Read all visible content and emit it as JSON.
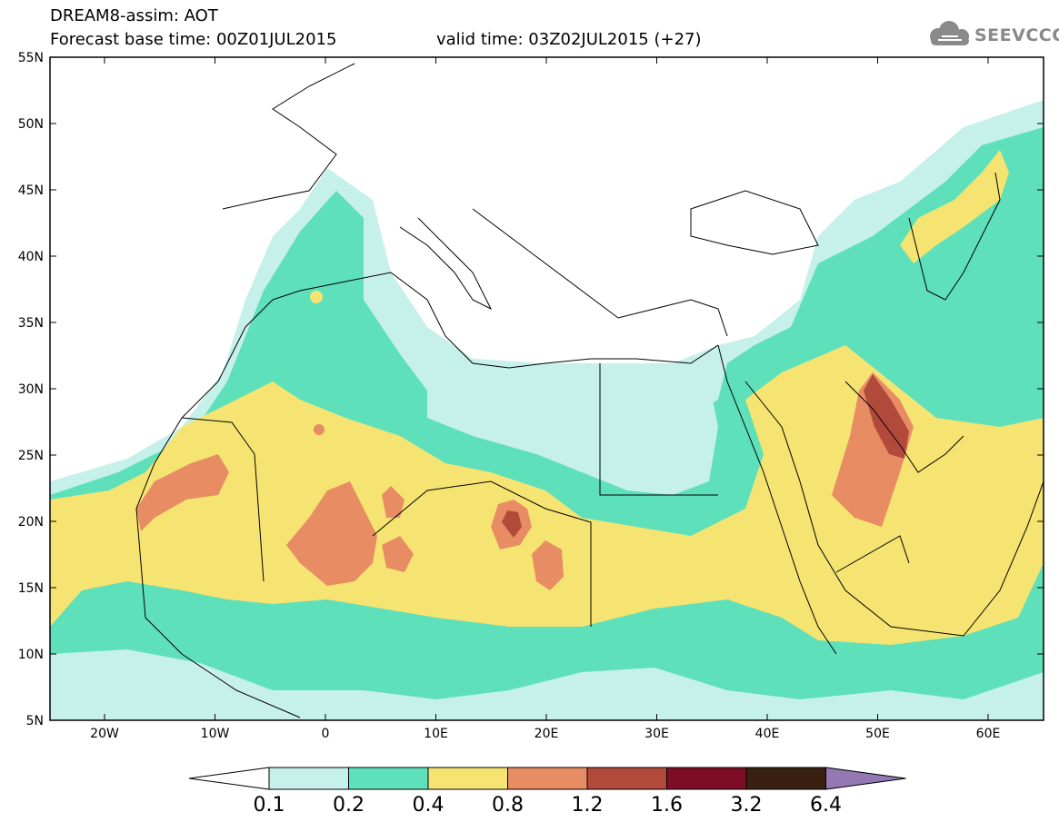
{
  "header": {
    "title": "DREAM8-assim: AOT",
    "base_time": "Forecast base time: 00Z01JUL2015",
    "valid_time": "valid time: 03Z02JUL2015 (+27)"
  },
  "logo": {
    "text": "SEEVCCC",
    "icon": "cloud-icon"
  },
  "axes": {
    "lat_labels": [
      "5N",
      "10N",
      "15N",
      "20N",
      "25N",
      "30N",
      "35N",
      "40N",
      "45N",
      "50N",
      "55N"
    ],
    "lon_labels": [
      "20W",
      "10W",
      "0",
      "10E",
      "20E",
      "30E",
      "40E",
      "50E",
      "60E"
    ]
  },
  "colorbar": {
    "labels": [
      "0.1",
      "0.2",
      "0.4",
      "0.8",
      "1.2",
      "1.6",
      "3.2",
      "6.4"
    ],
    "colors": [
      "#c6f0ea",
      "#5ee0ba",
      "#f6e472",
      "#e88c64",
      "#b24a3c",
      "#7e0e26",
      "#3a2010",
      "#9478b4"
    ],
    "under_color": "#ffffff"
  },
  "palette": {
    "c01": "#c6f0ea",
    "c02": "#5ee0ba",
    "c04": "#f6e472",
    "c08": "#e88c64",
    "c12": "#b24a3c",
    "c16": "#7e0e26"
  }
}
